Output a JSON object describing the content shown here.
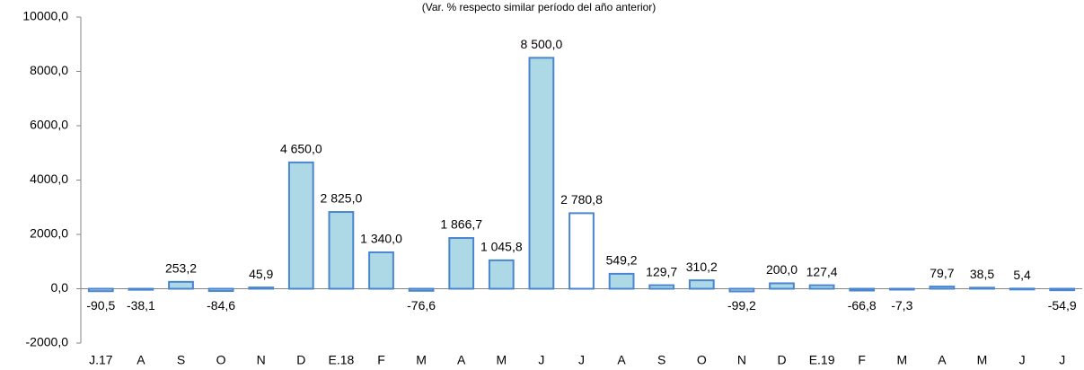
{
  "chart_data": {
    "type": "bar",
    "subtitle": "(Var. % respecto similar período del año anterior)",
    "categories": [
      "J.17",
      "A",
      "S",
      "O",
      "N",
      "D",
      "E.18",
      "F",
      "M",
      "A",
      "M",
      "J",
      "J",
      "A",
      "S",
      "O",
      "N",
      "D",
      "E.19",
      "F",
      "M",
      "A",
      "M",
      "J",
      "J"
    ],
    "values": [
      -90.5,
      -38.1,
      253.2,
      -84.6,
      45.9,
      4650.0,
      2825.0,
      1340.0,
      -76.6,
      1866.7,
      1045.8,
      8500.0,
      2780.8,
      549.2,
      129.7,
      310.2,
      -99.2,
      200.0,
      127.4,
      -66.8,
      -7.3,
      79.7,
      38.5,
      5.4,
      -54.9
    ],
    "value_labels": [
      "-90,5",
      "-38,1",
      "253,2",
      "-84,6",
      "45,9",
      "4 650,0",
      "2 825,0",
      "1 340,0",
      "-76,6",
      "1 866,7",
      "1 045,8",
      "8 500,0",
      "2 780,8",
      "549,2",
      "129,7",
      "310,2",
      "-99,2",
      "200,0",
      "127,4",
      "-66,8",
      "-7,3",
      "79,7",
      "38,5",
      "5,4",
      "-54,9"
    ],
    "colors": [
      "#add8e6",
      "#add8e6",
      "#add8e6",
      "#add8e6",
      "#add8e6",
      "#add8e6",
      "#add8e6",
      "#add8e6",
      "#add8e6",
      "#add8e6",
      "#add8e6",
      "#add8e6",
      "#ffffff",
      "#add8e6",
      "#add8e6",
      "#add8e6",
      "#add8e6",
      "#add8e6",
      "#add8e6",
      "#add8e6",
      "#add8e6",
      "#add8e6",
      "#add8e6",
      "#add8e6",
      "#add8e6"
    ],
    "edge_color": "#4a86d0",
    "ylim": [
      -2000,
      10000
    ],
    "yticks": [
      {
        "value": -2000,
        "label": "-2000,0"
      },
      {
        "value": 0,
        "label": "0,0"
      },
      {
        "value": 2000,
        "label": "2000,0"
      },
      {
        "value": 4000,
        "label": "4000,0"
      },
      {
        "value": 6000,
        "label": "6000,0"
      },
      {
        "value": 8000,
        "label": "8000,0"
      },
      {
        "value": 10000,
        "label": "10000,0"
      }
    ],
    "grid": false
  }
}
